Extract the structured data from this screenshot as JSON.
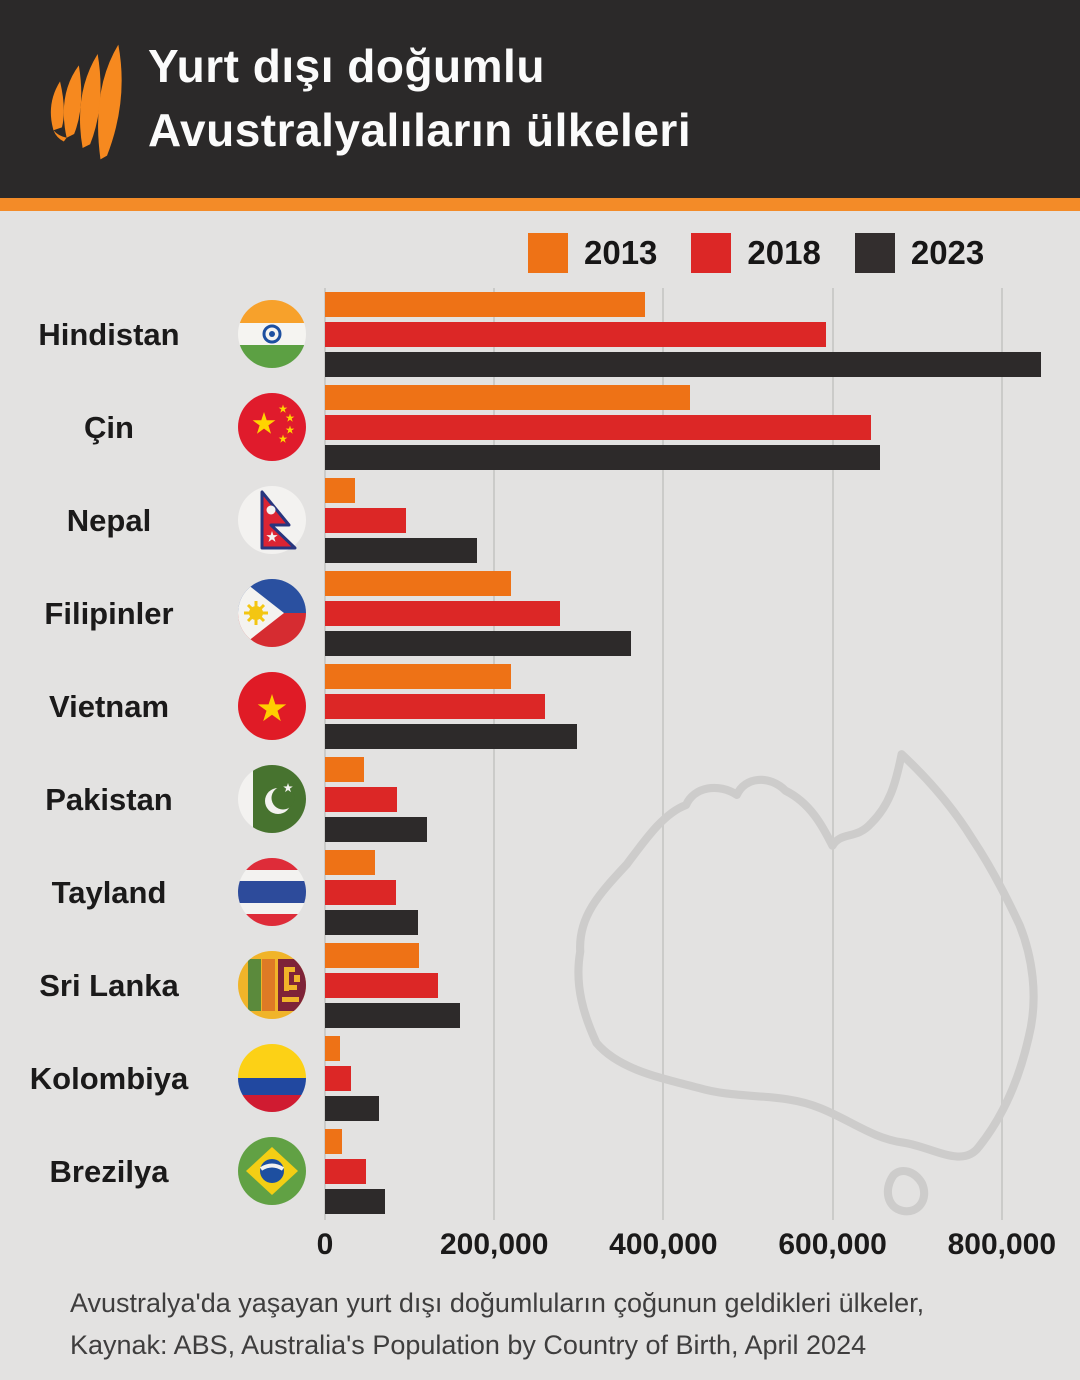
{
  "header": {
    "title_line1": "Yurt dışı doğumlu",
    "title_line2": "Avustralyalıların ülkeleri",
    "logo": "sbs-logo"
  },
  "legend": [
    {
      "label": "2013",
      "color": "#EE7216"
    },
    {
      "label": "2018",
      "color": "#DC2726"
    },
    {
      "label": "2023",
      "color": "#332E2E"
    }
  ],
  "chart_data": {
    "type": "bar",
    "orientation": "horizontal",
    "title": "Yurt dışı doğumlu Avustralyalıların ülkeleri",
    "categories": [
      "Hindistan",
      "Çin",
      "Nepal",
      "Filipinler",
      "Vietnam",
      "Pakistan",
      "Tayland",
      "Sri Lanka",
      "Kolombiya",
      "Brezilya"
    ],
    "flags": [
      "india",
      "china",
      "nepal",
      "philippines",
      "vietnam",
      "pakistan",
      "thailand",
      "sri-lanka",
      "colombia",
      "brazil"
    ],
    "series": [
      {
        "name": "2013",
        "color": "#EE7216",
        "values": [
          378000,
          432000,
          35000,
          220000,
          220000,
          46000,
          59000,
          111000,
          18000,
          20000
        ]
      },
      {
        "name": "2018",
        "color": "#DC2726",
        "values": [
          592000,
          645000,
          96000,
          278000,
          260000,
          85000,
          84000,
          133000,
          31000,
          48000
        ]
      },
      {
        "name": "2023",
        "color": "#2D2A2A",
        "values": [
          846000,
          656000,
          180000,
          362000,
          298000,
          120000,
          110000,
          160000,
          64000,
          71000
        ]
      }
    ],
    "x_ticks": [
      0,
      200000,
      400000,
      600000,
      800000
    ],
    "x_tick_labels": [
      "0",
      "200,000",
      "400,000",
      "600,000",
      "800,000"
    ],
    "xlim": [
      0,
      850000
    ],
    "grid": true,
    "legend_position": "top-right",
    "watermark": "australia-map-outline"
  },
  "footer": {
    "line1": "Avustralya'da yaşayan yurt dışı doğumluların çoğunun geldikleri ülkeler,",
    "line2": "Kaynak: ABS, Australia's Population by Country of Birth, April 2024"
  },
  "colors": {
    "header_bg": "#2B2929",
    "accent_orange": "#F38B28",
    "background": "#E3E2E1",
    "gridline": "#CBCBC9",
    "map_outline": "#CDCCCB",
    "text": "#1B1A1A"
  }
}
